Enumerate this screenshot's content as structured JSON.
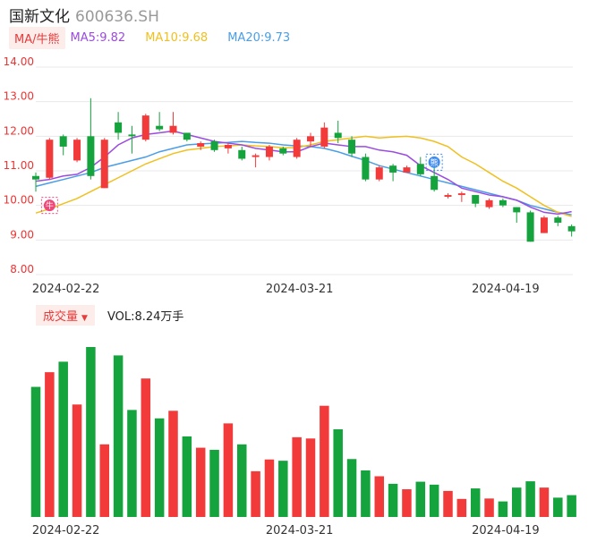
{
  "header": {
    "name": "国新文化",
    "code": "600636.SH"
  },
  "ma_bar": {
    "selector_label": "MA/牛熊",
    "items": [
      {
        "label": "MA5:9.82",
        "color": "#9b4be0"
      },
      {
        "label": "MA10:9.68",
        "color": "#f0c020"
      },
      {
        "label": "MA20:9.73",
        "color": "#4a9de6"
      }
    ]
  },
  "volume_bar": {
    "selector_label": "成交量",
    "text": "VOL:8.24万手"
  },
  "markers": {
    "bull": "牛",
    "bear": "熊"
  },
  "colors": {
    "up": "#f23a3a",
    "down": "#14a33c",
    "ma5": "#9b4be0",
    "ma10": "#f0c020",
    "ma20": "#4a9de6"
  },
  "chart_data": [
    {
      "type": "candlestick",
      "y_ticks": [
        "14.00",
        "13.00",
        "12.00",
        "11.00",
        "10.00",
        "9.00",
        "8.00"
      ],
      "ylim": [
        8.0,
        14.0
      ],
      "x_tick_labels": [
        "2024-02-22",
        "2024-03-21",
        "2024-04-19"
      ],
      "x_tick_indices": [
        2,
        19,
        34
      ],
      "candles": [
        {
          "o": 10.85,
          "c": 10.75,
          "h": 10.95,
          "l": 10.4
        },
        {
          "o": 10.8,
          "c": 11.9,
          "h": 11.95,
          "l": 10.75
        },
        {
          "o": 12.0,
          "c": 11.7,
          "h": 12.05,
          "l": 11.45
        },
        {
          "o": 11.3,
          "c": 11.9,
          "h": 11.95,
          "l": 11.25
        },
        {
          "o": 12.0,
          "c": 10.85,
          "h": 13.1,
          "l": 10.75
        },
        {
          "o": 10.5,
          "c": 11.9,
          "h": 11.95,
          "l": 10.5
        },
        {
          "o": 12.4,
          "c": 12.1,
          "h": 12.7,
          "l": 11.9
        },
        {
          "o": 12.05,
          "c": 12.0,
          "h": 12.3,
          "l": 11.5
        },
        {
          "o": 11.9,
          "c": 12.6,
          "h": 12.65,
          "l": 11.85
        },
        {
          "o": 12.3,
          "c": 12.2,
          "h": 12.7,
          "l": 12.15
        },
        {
          "o": 12.1,
          "c": 12.3,
          "h": 12.7,
          "l": 12.05
        },
        {
          "o": 12.1,
          "c": 11.9,
          "h": 12.1,
          "l": 11.85
        },
        {
          "o": 11.7,
          "c": 11.8,
          "h": 11.85,
          "l": 11.6
        },
        {
          "o": 11.85,
          "c": 11.6,
          "h": 11.9,
          "l": 11.55
        },
        {
          "o": 11.65,
          "c": 11.75,
          "h": 11.8,
          "l": 11.5
        },
        {
          "o": 11.6,
          "c": 11.35,
          "h": 11.7,
          "l": 11.3
        },
        {
          "o": 11.4,
          "c": 11.45,
          "h": 11.5,
          "l": 11.1
        },
        {
          "o": 11.4,
          "c": 11.7,
          "h": 11.75,
          "l": 11.3
        },
        {
          "o": 11.65,
          "c": 11.5,
          "h": 11.7,
          "l": 11.45
        },
        {
          "o": 11.4,
          "c": 11.9,
          "h": 11.95,
          "l": 11.35
        },
        {
          "o": 11.85,
          "c": 12.0,
          "h": 12.1,
          "l": 11.7
        },
        {
          "o": 11.7,
          "c": 12.25,
          "h": 12.4,
          "l": 11.65
        },
        {
          "o": 12.1,
          "c": 11.95,
          "h": 12.45,
          "l": 11.8
        },
        {
          "o": 11.9,
          "c": 11.5,
          "h": 12.0,
          "l": 11.4
        },
        {
          "o": 11.4,
          "c": 10.75,
          "h": 11.5,
          "l": 10.7
        },
        {
          "o": 10.75,
          "c": 11.1,
          "h": 11.15,
          "l": 10.7
        },
        {
          "o": 11.15,
          "c": 10.95,
          "h": 11.2,
          "l": 10.7
        },
        {
          "o": 10.95,
          "c": 11.1,
          "h": 11.15,
          "l": 10.95
        },
        {
          "o": 11.2,
          "c": 10.9,
          "h": 11.4,
          "l": 10.85
        },
        {
          "o": 10.85,
          "c": 10.45,
          "h": 11.2,
          "l": 10.4
        },
        {
          "o": 10.25,
          "c": 10.3,
          "h": 10.35,
          "l": 10.2
        },
        {
          "o": 10.3,
          "c": 10.35,
          "h": 10.4,
          "l": 10.1
        },
        {
          "o": 10.3,
          "c": 10.05,
          "h": 10.3,
          "l": 9.95
        },
        {
          "o": 9.95,
          "c": 10.15,
          "h": 10.2,
          "l": 9.9
        },
        {
          "o": 10.15,
          "c": 10.0,
          "h": 10.2,
          "l": 9.95
        },
        {
          "o": 9.95,
          "c": 9.8,
          "h": 9.95,
          "l": 9.5
        },
        {
          "o": 9.8,
          "c": 8.95,
          "h": 9.85,
          "l": 8.95
        },
        {
          "o": 9.2,
          "c": 9.65,
          "h": 9.7,
          "l": 9.2
        },
        {
          "o": 9.65,
          "c": 9.5,
          "h": 9.7,
          "l": 9.4
        },
        {
          "o": 9.4,
          "c": 9.25,
          "h": 9.45,
          "l": 9.1
        }
      ],
      "ma5": [
        10.7,
        10.75,
        10.85,
        10.9,
        11.1,
        11.4,
        11.75,
        11.95,
        12.05,
        12.1,
        12.15,
        12.05,
        11.95,
        11.85,
        11.8,
        11.75,
        11.65,
        11.6,
        11.55,
        11.55,
        11.7,
        11.8,
        11.75,
        11.7,
        11.7,
        11.6,
        11.55,
        11.45,
        11.15,
        10.95,
        10.75,
        10.5,
        10.4,
        10.3,
        10.25,
        10.15,
        9.95,
        9.8,
        9.75,
        9.82
      ],
      "ma10": [
        9.78,
        9.9,
        10.05,
        10.2,
        10.4,
        10.6,
        10.8,
        11.0,
        11.2,
        11.35,
        11.5,
        11.6,
        11.65,
        11.7,
        11.72,
        11.75,
        11.72,
        11.7,
        11.67,
        11.67,
        11.75,
        11.85,
        11.9,
        11.95,
        12.0,
        11.95,
        11.98,
        12.0,
        11.95,
        11.85,
        11.7,
        11.4,
        11.2,
        10.95,
        10.7,
        10.5,
        10.25,
        10.0,
        9.8,
        9.68
      ],
      "ma20": [
        10.55,
        10.65,
        10.75,
        10.85,
        10.95,
        11.1,
        11.2,
        11.3,
        11.4,
        11.55,
        11.65,
        11.75,
        11.78,
        11.8,
        11.82,
        11.85,
        11.82,
        11.8,
        11.75,
        11.72,
        11.7,
        11.65,
        11.55,
        11.42,
        11.3,
        11.15,
        11.05,
        10.95,
        10.85,
        10.75,
        10.65,
        10.55,
        10.45,
        10.35,
        10.25,
        10.15,
        10.0,
        9.9,
        9.8,
        9.73
      ]
    },
    {
      "type": "bar",
      "name": "成交量",
      "x_tick_labels": [
        "2024-02-22",
        "2024-03-21",
        "2024-04-19"
      ],
      "x_tick_indices": [
        2,
        19,
        34
      ],
      "values": [
        31.0,
        34.5,
        37.0,
        26.8,
        40.5,
        17.3,
        38.5,
        25.5,
        33.0,
        23.5,
        25.3,
        19.2,
        16.5,
        16.0,
        22.3,
        17.3,
        10.9,
        13.7,
        13.4,
        19.0,
        18.7,
        26.5,
        20.9,
        13.8,
        11.1,
        9.7,
        7.9,
        6.6,
        8.4,
        7.7,
        6.2,
        4.3,
        6.8,
        4.4,
        3.7,
        7.0,
        8.5,
        7.0,
        4.6,
        5.2
      ],
      "ylim": [
        0,
        40.5
      ]
    }
  ]
}
